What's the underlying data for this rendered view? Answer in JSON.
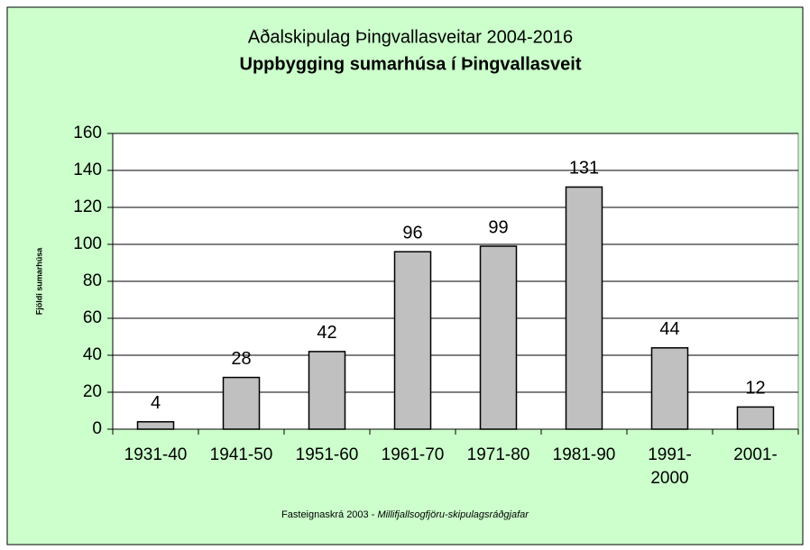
{
  "chart_data": {
    "type": "bar",
    "title": "Aðalskipulag Þingvallasveitar 2004-2016",
    "subtitle": "Uppbygging sumarhúsa í Þingvallasveit",
    "y_label": "Fjöldi sumarhúsa",
    "categories": [
      "1931-40",
      "1941-50",
      "1951-60",
      "1961-70",
      "1971-80",
      "1981-90",
      "1991-2000",
      "2001-"
    ],
    "values": [
      4,
      28,
      42,
      96,
      99,
      131,
      44,
      12
    ],
    "color": "#c0c0c0",
    "ylim": [
      0,
      160
    ],
    "yticks": [
      0,
      20,
      40,
      60,
      80,
      100,
      120,
      140,
      160
    ],
    "grid": true,
    "footnote": {
      "source": "Fasteignaskrá 2003 - ",
      "author": "Millifjallsogfjöru-skipulagsráðgjafar"
    }
  }
}
